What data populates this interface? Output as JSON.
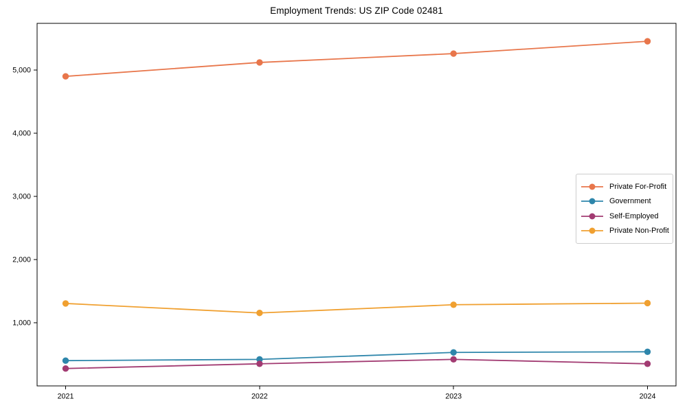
{
  "figure": {
    "title": "Employment Trends: US ZIP Code 02481"
  },
  "chart_data": {
    "type": "line",
    "title": "Employment Trends: US ZIP Code 02481",
    "xlabel": "",
    "ylabel": "",
    "x": [
      2021,
      2022,
      2023,
      2024
    ],
    "x_tick_labels": [
      "2021",
      "2022",
      "2023",
      "2024"
    ],
    "y_ticks": [
      {
        "value": 1000,
        "label": "1,000"
      },
      {
        "value": 2000,
        "label": "2,000"
      },
      {
        "value": 3000,
        "label": "3,000"
      },
      {
        "value": 4000,
        "label": "4,000"
      },
      {
        "value": 5000,
        "label": "5,000"
      }
    ],
    "ylim": [
      0,
      5739
    ],
    "grid": false,
    "legend_position": "center-right",
    "marker": "circle",
    "axis_color": "#000000",
    "legend_border_color": "#cccccc",
    "series": [
      {
        "name": "Private For-Profit",
        "color": "#E8764B",
        "values": [
          4900,
          5120,
          5260,
          5455
        ]
      },
      {
        "name": "Government",
        "color": "#2E86AB",
        "values": [
          400,
          420,
          530,
          540
        ]
      },
      {
        "name": "Self-Employed",
        "color": "#A23B72",
        "values": [
          275,
          350,
          420,
          350
        ]
      },
      {
        "name": "Private Non-Profit",
        "color": "#F0A030",
        "values": [
          1305,
          1155,
          1285,
          1310
        ]
      }
    ]
  }
}
